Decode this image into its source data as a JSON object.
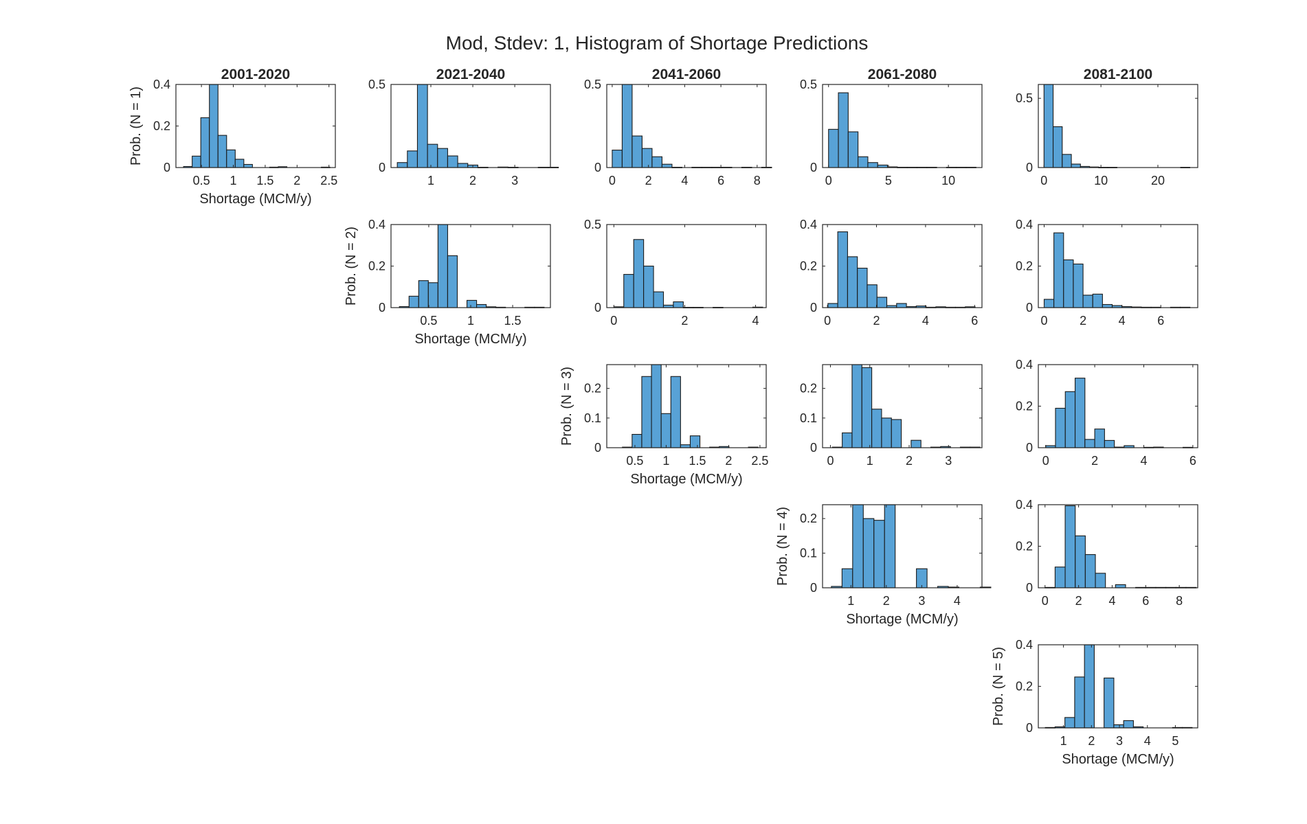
{
  "colors": {
    "bar_fill": "#58a2d6",
    "bar_edge": "#1a1a1a",
    "axes": "#262626",
    "background": "#ffffff"
  },
  "chart_data": {
    "type": "bar",
    "title": "Mod, Stdev: 1, Histogram of Shortage Predictions",
    "column_titles": [
      "2001-2020",
      "2021-2040",
      "2041-2060",
      "2061-2080",
      "2081-2100"
    ],
    "row_ylabels": [
      "Prob. (N = 1)",
      "Prob. (N = 2)",
      "Prob. (N = 3)",
      "Prob. (N = 4)",
      "Prob. (N = 5)"
    ],
    "xlabel": "Shortage (MCM/y)",
    "grid": false,
    "legend": "none",
    "panels": [
      {
        "row": 0,
        "col": 0,
        "xlim": [
          0.1,
          2.6
        ],
        "ylim": [
          0,
          0.4
        ],
        "xticks": [
          0.5,
          1,
          1.5,
          2,
          2.5
        ],
        "xtick_labels": [
          "0.5",
          "1",
          "1.5",
          "2",
          "2.5"
        ],
        "yticks": [
          0,
          0.2,
          0.4
        ],
        "ytick_labels": [
          "0",
          "0.2",
          "0.4"
        ],
        "bin_start": 0.22,
        "bin_width": 0.135,
        "values": [
          0.005,
          0.055,
          0.24,
          0.4,
          0.155,
          0.085,
          0.04,
          0.015,
          0,
          0,
          0.002,
          0.004,
          0,
          0,
          0,
          0,
          0.002
        ]
      },
      {
        "row": 0,
        "col": 1,
        "xlim": [
          0.05,
          3.85
        ],
        "ylim": [
          0,
          0.5
        ],
        "xticks": [
          1,
          2,
          3
        ],
        "xtick_labels": [
          "1",
          "2",
          "3"
        ],
        "yticks": [
          0,
          0.5
        ],
        "ytick_labels": [
          "0",
          "0.5"
        ],
        "bin_start": 0.2,
        "bin_width": 0.24,
        "values": [
          0.03,
          0.1,
          0.5,
          0.14,
          0.115,
          0.07,
          0.025,
          0.015,
          0.002,
          0,
          0.003,
          0.002,
          0,
          0,
          0.002,
          0.002
        ]
      },
      {
        "row": 0,
        "col": 2,
        "xlim": [
          -0.3,
          8.5
        ],
        "ylim": [
          0,
          0.5
        ],
        "xticks": [
          0,
          2,
          4,
          6,
          8
        ],
        "xtick_labels": [
          "0",
          "2",
          "4",
          "6",
          "8"
        ],
        "yticks": [
          0,
          0.5
        ],
        "ytick_labels": [
          "0",
          "0.5"
        ],
        "bin_start": 0,
        "bin_width": 0.55,
        "values": [
          0.105,
          0.5,
          0.19,
          0.115,
          0.065,
          0.02,
          0.002,
          0,
          0.002,
          0.002,
          0.002,
          0.002,
          0,
          0.002,
          0,
          0.002
        ]
      },
      {
        "row": 0,
        "col": 3,
        "xlim": [
          -0.5,
          12.8
        ],
        "ylim": [
          0,
          0.5
        ],
        "xticks": [
          0,
          5,
          10
        ],
        "xtick_labels": [
          "0",
          "5",
          "10"
        ],
        "yticks": [
          0,
          0.5
        ],
        "ytick_labels": [
          "0",
          "0.5"
        ],
        "bin_start": 0,
        "bin_width": 0.82,
        "values": [
          0.23,
          0.45,
          0.215,
          0.065,
          0.03,
          0.015,
          0.004,
          0.002,
          0.002,
          0.002,
          0.002,
          0,
          0.002,
          0.002,
          0.002
        ]
      },
      {
        "row": 0,
        "col": 4,
        "xlim": [
          -1,
          27
        ],
        "ylim": [
          0,
          0.6
        ],
        "xticks": [
          0,
          10,
          20
        ],
        "xtick_labels": [
          "0",
          "10",
          "20"
        ],
        "yticks": [
          0,
          0.5
        ],
        "ytick_labels": [
          "0",
          "0.5"
        ],
        "bin_start": 0,
        "bin_width": 1.6,
        "values": [
          0.6,
          0.295,
          0.095,
          0.025,
          0.008,
          0.004,
          0.002,
          0.002,
          0,
          0,
          0,
          0,
          0,
          0,
          0,
          0.002
        ]
      },
      {
        "row": 1,
        "col": 1,
        "xlim": [
          0.05,
          1.95
        ],
        "ylim": [
          0,
          0.4
        ],
        "xticks": [
          0.5,
          1,
          1.5
        ],
        "xtick_labels": [
          "0.5",
          "1",
          "1.5"
        ],
        "yticks": [
          0,
          0.2,
          0.4
        ],
        "ytick_labels": [
          "0",
          "0.2",
          "0.4"
        ],
        "bin_start": 0.15,
        "bin_width": 0.115,
        "values": [
          0.005,
          0.055,
          0.13,
          0.12,
          0.4,
          0.25,
          0,
          0.035,
          0.015,
          0.004,
          0.002,
          0,
          0,
          0.002,
          0.002
        ]
      },
      {
        "row": 1,
        "col": 2,
        "xlim": [
          -0.2,
          4.3
        ],
        "ylim": [
          0,
          0.5
        ],
        "xticks": [
          0,
          2,
          4
        ],
        "xtick_labels": [
          "0",
          "2",
          "4"
        ],
        "yticks": [
          0,
          0.5
        ],
        "ytick_labels": [
          "0",
          "0.5"
        ],
        "bin_start": 0,
        "bin_width": 0.28,
        "values": [
          0.005,
          0.2,
          0.41,
          0.25,
          0.095,
          0.015,
          0.035,
          0.002,
          0.002,
          0,
          0.002,
          0,
          0,
          0,
          0.003
        ]
      },
      {
        "row": 1,
        "col": 3,
        "xlim": [
          -0.2,
          6.3
        ],
        "ylim": [
          0,
          0.4
        ],
        "xticks": [
          0,
          2,
          4,
          6
        ],
        "xtick_labels": [
          "0",
          "2",
          "4",
          "6"
        ],
        "yticks": [
          0,
          0.2,
          0.4
        ],
        "ytick_labels": [
          "0",
          "0.2",
          "0.4"
        ],
        "bin_start": 0.02,
        "bin_width": 0.4,
        "values": [
          0.02,
          0.365,
          0.245,
          0.19,
          0.11,
          0.05,
          0.01,
          0.02,
          0.005,
          0.008,
          0.002,
          0.004,
          0.002,
          0.002,
          0.004
        ]
      },
      {
        "row": 1,
        "col": 4,
        "xlim": [
          -0.3,
          7.9
        ],
        "ylim": [
          0,
          0.4
        ],
        "xticks": [
          0,
          2,
          4,
          6
        ],
        "xtick_labels": [
          "0",
          "2",
          "4",
          "6"
        ],
        "yticks": [
          0,
          0.2,
          0.4
        ],
        "ytick_labels": [
          "0",
          "0.2",
          "0.4"
        ],
        "bin_start": 0,
        "bin_width": 0.5,
        "values": [
          0.04,
          0.36,
          0.23,
          0.21,
          0.06,
          0.065,
          0.015,
          0.01,
          0.005,
          0.003,
          0.002,
          0.002,
          0,
          0.002,
          0.002
        ]
      },
      {
        "row": 2,
        "col": 2,
        "xlim": [
          0.05,
          2.6
        ],
        "ylim": [
          0,
          0.28
        ],
        "xticks": [
          0.5,
          1,
          1.5,
          2,
          2.5
        ],
        "xtick_labels": [
          "0.5",
          "1",
          "1.5",
          "2",
          "2.5"
        ],
        "yticks": [
          0,
          0.1,
          0.2
        ],
        "ytick_labels": [
          "0",
          "0.1",
          "0.2"
        ],
        "bin_start": 0.3,
        "bin_width": 0.155,
        "values": [
          0.002,
          0.045,
          0.24,
          0.28,
          0.115,
          0.24,
          0.01,
          0.04,
          0,
          0.002,
          0.004,
          0,
          0,
          0.002,
          0
        ]
      },
      {
        "row": 2,
        "col": 3,
        "xlim": [
          -0.2,
          3.85
        ],
        "ylim": [
          0,
          0.28
        ],
        "xticks": [
          0,
          1,
          2,
          3
        ],
        "xtick_labels": [
          "0",
          "1",
          "2",
          "3"
        ],
        "yticks": [
          0,
          0.1,
          0.2
        ],
        "ytick_labels": [
          "0",
          "0.1",
          "0.2"
        ],
        "bin_start": 0.05,
        "bin_width": 0.25,
        "values": [
          0.002,
          0.05,
          0.28,
          0.27,
          0.13,
          0.1,
          0.095,
          0,
          0.025,
          0,
          0.002,
          0.004,
          0,
          0.002,
          0.002
        ]
      },
      {
        "row": 2,
        "col": 4,
        "xlim": [
          -0.3,
          6.2
        ],
        "ylim": [
          0,
          0.4
        ],
        "xticks": [
          0,
          2,
          4,
          6
        ],
        "xtick_labels": [
          "0",
          "2",
          "4",
          "6"
        ],
        "yticks": [
          0,
          0.2,
          0.4
        ],
        "ytick_labels": [
          "0",
          "0.2",
          "0.4"
        ],
        "bin_start": 0,
        "bin_width": 0.4,
        "values": [
          0.01,
          0.19,
          0.27,
          0.335,
          0.04,
          0.09,
          0.035,
          0.003,
          0.01,
          0,
          0.002,
          0.003,
          0,
          0,
          0.002
        ]
      },
      {
        "row": 3,
        "col": 3,
        "xlim": [
          0.2,
          4.7
        ],
        "ylim": [
          0,
          0.24
        ],
        "xticks": [
          1,
          2,
          3,
          4
        ],
        "xtick_labels": [
          "1",
          "2",
          "3",
          "4"
        ],
        "yticks": [
          0,
          0.1,
          0.2
        ],
        "ytick_labels": [
          "0",
          "0.1",
          "0.2"
        ],
        "bin_start": 0.45,
        "bin_width": 0.3,
        "values": [
          0.004,
          0.055,
          0.24,
          0.2,
          0.195,
          0.24,
          0,
          0,
          0.055,
          0,
          0.004,
          0.002,
          0,
          0,
          0.002
        ]
      },
      {
        "row": 3,
        "col": 4,
        "xlim": [
          -0.4,
          9.1
        ],
        "ylim": [
          0,
          0.4
        ],
        "xticks": [
          0,
          2,
          4,
          6,
          8
        ],
        "xtick_labels": [
          "0",
          "2",
          "4",
          "6",
          "8"
        ],
        "yticks": [
          0,
          0.2,
          0.4
        ],
        "ytick_labels": [
          "0",
          "0.2",
          "0.4"
        ],
        "bin_start": 0,
        "bin_width": 0.6,
        "values": [
          0.002,
          0.1,
          0.395,
          0.25,
          0.16,
          0.07,
          0,
          0.015,
          0,
          0.002,
          0.002,
          0.002,
          0.002,
          0.002,
          0.002
        ]
      },
      {
        "row": 4,
        "col": 4,
        "xlim": [
          0.1,
          5.8
        ],
        "ylim": [
          0,
          0.4
        ],
        "xticks": [
          1,
          2,
          3,
          4,
          5
        ],
        "xtick_labels": [
          "1",
          "2",
          "3",
          "4",
          "5"
        ],
        "yticks": [
          0,
          0.2,
          0.4
        ],
        "ytick_labels": [
          "0",
          "0.2",
          "0.4"
        ],
        "bin_start": 0.35,
        "bin_width": 0.35,
        "values": [
          0.002,
          0.005,
          0.05,
          0.245,
          0.4,
          0,
          0.24,
          0.015,
          0.035,
          0.005,
          0,
          0,
          0,
          0.002,
          0.002
        ]
      }
    ]
  }
}
